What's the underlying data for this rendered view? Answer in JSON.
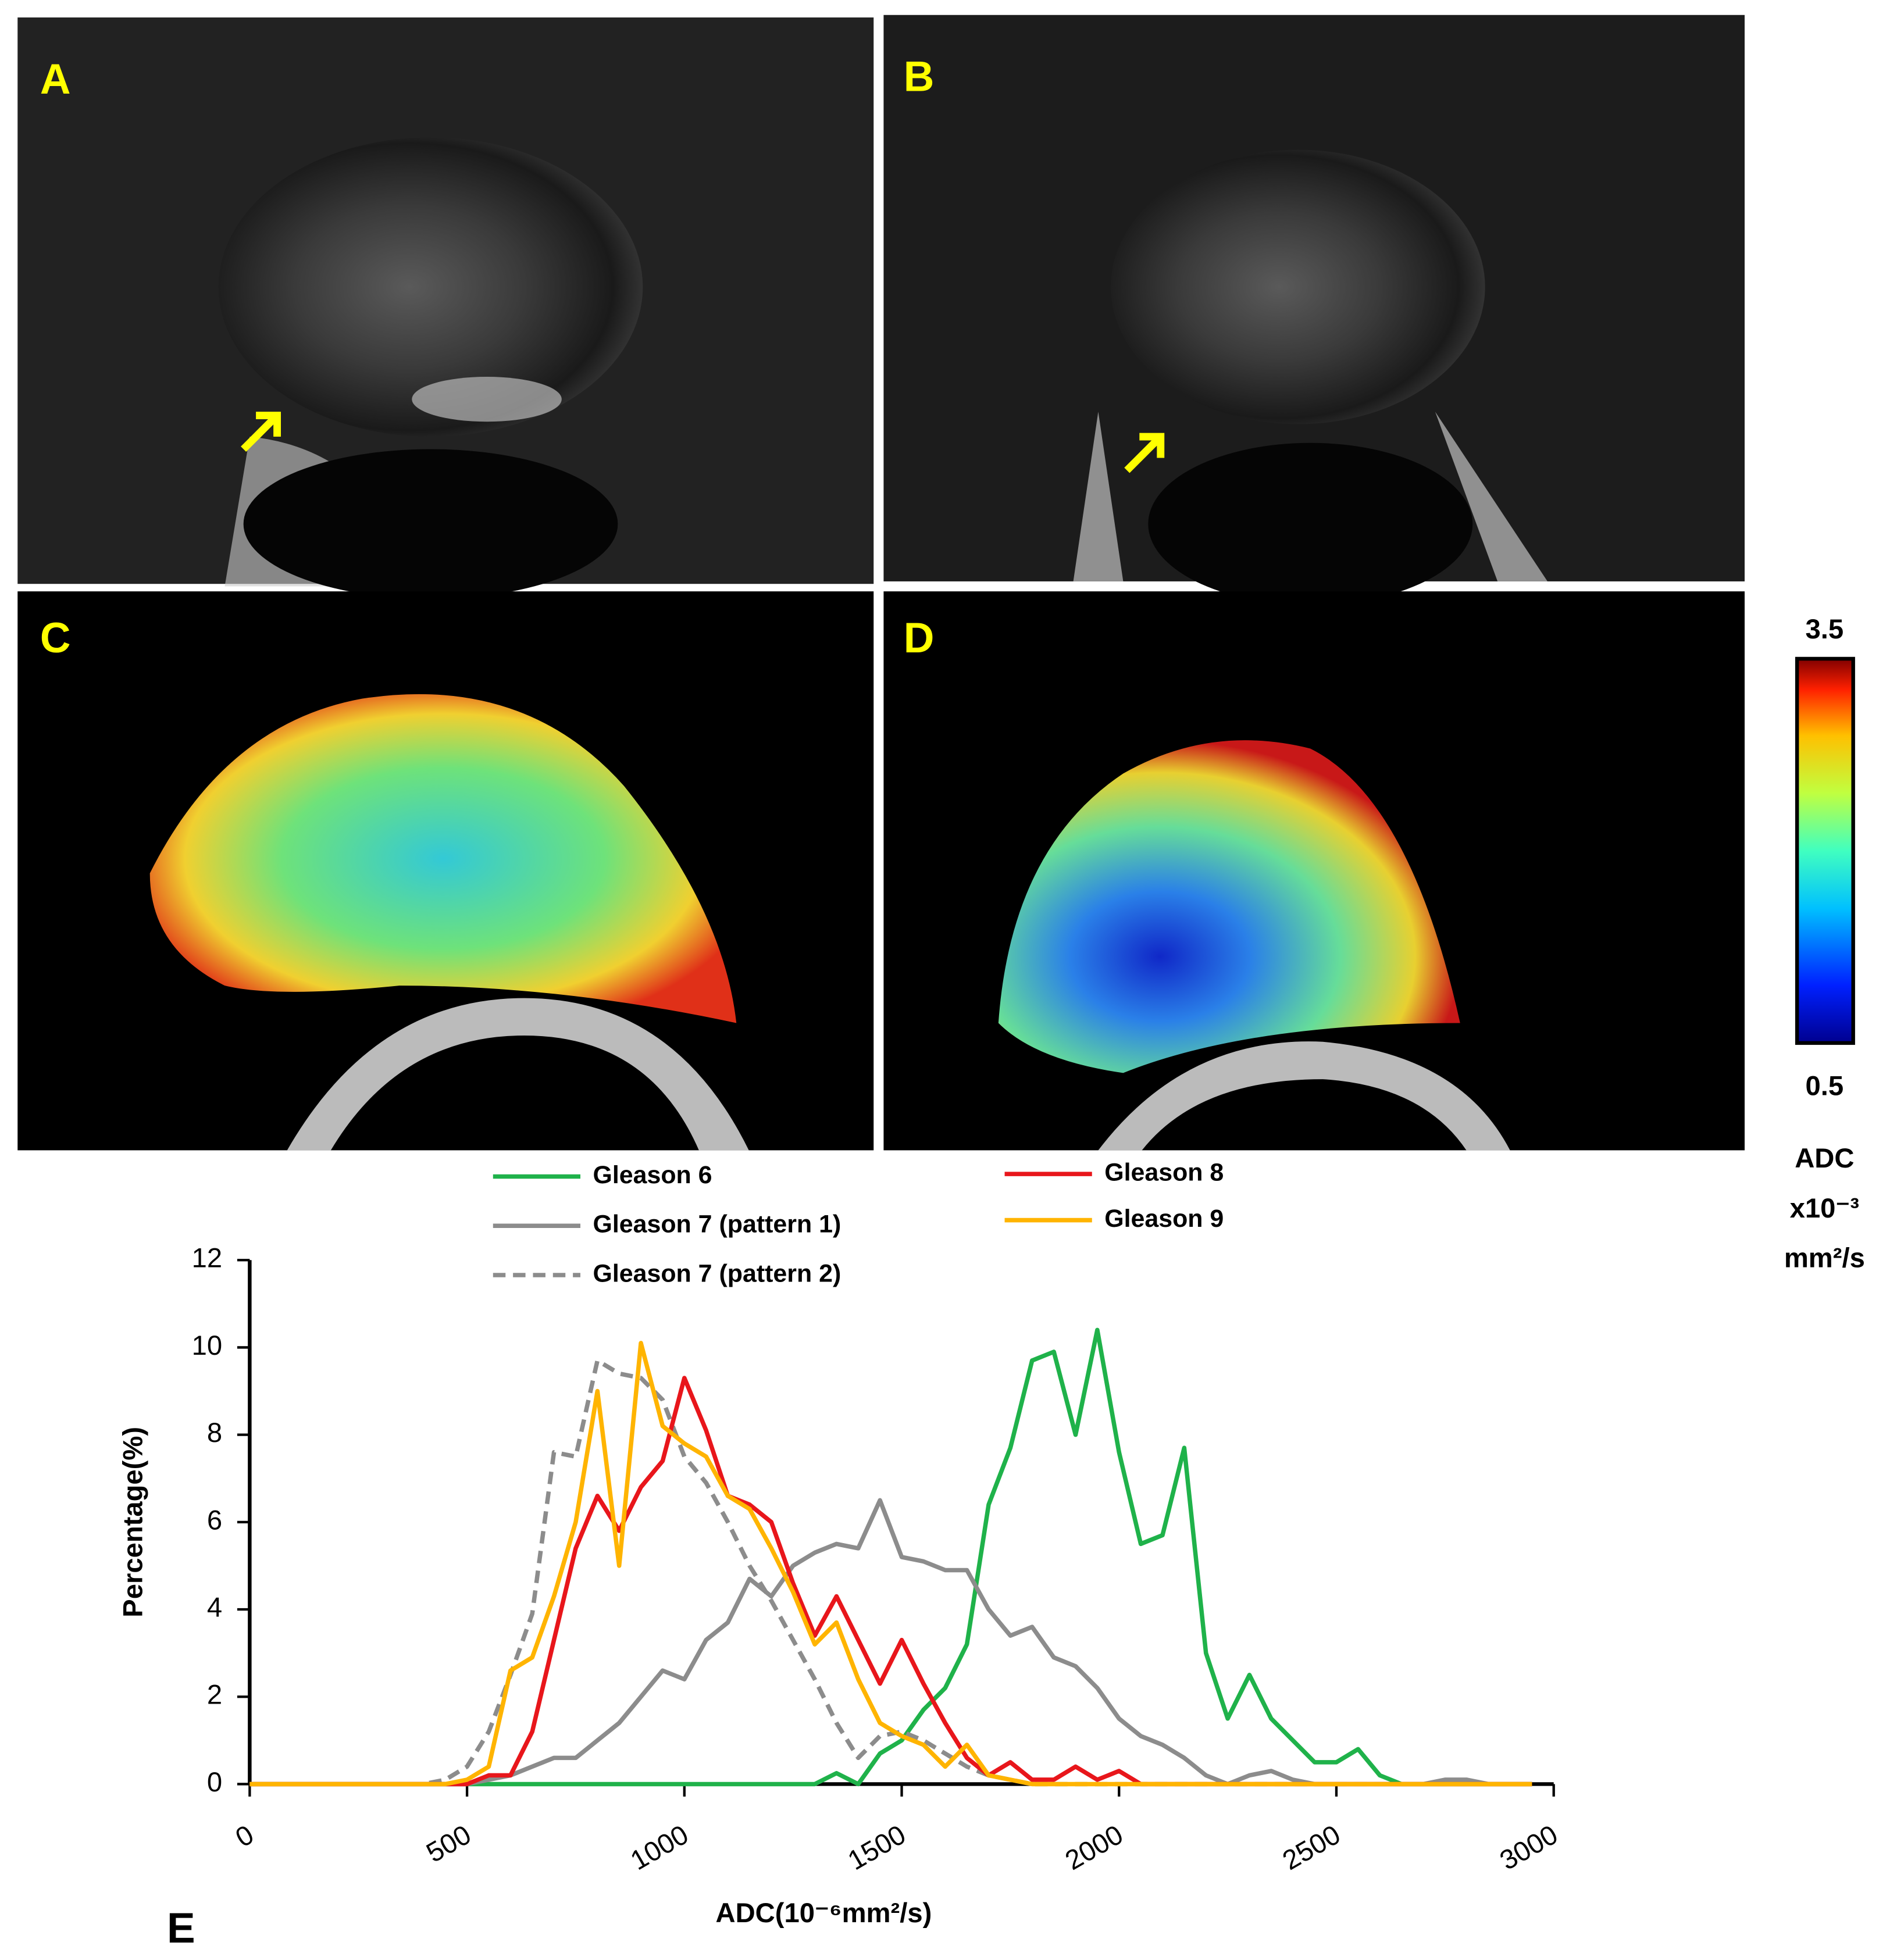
{
  "panels": [
    "A",
    "B",
    "C",
    "D",
    "E"
  ],
  "colorbar": {
    "max": "3.5",
    "min": "0.5",
    "label": [
      "ADC",
      "x10⁻³",
      "mm²/s"
    ]
  },
  "chart_data": {
    "type": "line",
    "xlabel": "ADC(10⁻⁶mm²/s)",
    "ylabel": "Percentage(%)",
    "x": [
      0,
      50,
      100,
      150,
      200,
      250,
      300,
      350,
      400,
      450,
      500,
      550,
      600,
      650,
      700,
      750,
      800,
      850,
      900,
      950,
      1000,
      1050,
      1100,
      1150,
      1200,
      1250,
      1300,
      1350,
      1400,
      1450,
      1500,
      1550,
      1600,
      1650,
      1700,
      1750,
      1800,
      1850,
      1900,
      1950,
      2000,
      2050,
      2100,
      2150,
      2200,
      2250,
      2300,
      2350,
      2400,
      2450,
      2500,
      2550,
      2600,
      2650,
      2700,
      2750,
      2800,
      2850,
      2900,
      2950
    ],
    "xlim": [
      0,
      3000
    ],
    "xticks": [
      0,
      500,
      1000,
      1500,
      2000,
      2500,
      3000
    ],
    "ylim": [
      0,
      12
    ],
    "yticks": [
      0,
      2,
      4,
      6,
      8,
      10,
      12
    ],
    "grid": false,
    "series": [
      {
        "name": "Gleason 6",
        "color": "#1fb24a",
        "dashed": false,
        "values": [
          0,
          0,
          0,
          0,
          0,
          0,
          0,
          0,
          0,
          0,
          0,
          0,
          0,
          0,
          0,
          0,
          0,
          0,
          0,
          0,
          0,
          0,
          0,
          0,
          0,
          0,
          0,
          0.25,
          0,
          0.7,
          1.0,
          1.7,
          2.2,
          3.2,
          6.4,
          7.7,
          9.7,
          9.9,
          8.0,
          10.4,
          7.6,
          5.5,
          5.7,
          7.7,
          3.0,
          1.5,
          2.5,
          1.5,
          1.0,
          0.5,
          0.5,
          0.8,
          0.2,
          0,
          0,
          0,
          0,
          0,
          0,
          0
        ]
      },
      {
        "name": "Gleason 7 (pattern 1)",
        "color": "#8c8c8c",
        "dashed": false,
        "values": [
          0,
          0,
          0,
          0,
          0,
          0,
          0,
          0,
          0,
          0,
          0,
          0.1,
          0.2,
          0.4,
          0.6,
          0.6,
          1.0,
          1.4,
          2.0,
          2.6,
          2.4,
          3.3,
          3.7,
          4.7,
          4.3,
          5.0,
          5.3,
          5.5,
          5.4,
          6.5,
          5.2,
          5.1,
          4.9,
          4.9,
          4.0,
          3.4,
          3.6,
          2.9,
          2.7,
          2.2,
          1.5,
          1.1,
          0.9,
          0.6,
          0.2,
          0,
          0.2,
          0.3,
          0.1,
          0,
          0,
          0,
          0,
          0,
          0,
          0.1,
          0.1,
          0,
          0,
          0
        ]
      },
      {
        "name": "Gleason 7 (pattern 2)",
        "color": "#8c8c8c",
        "dashed": true,
        "values": [
          0,
          0,
          0,
          0,
          0,
          0,
          0,
          0,
          0,
          0.1,
          0.4,
          1.2,
          2.5,
          3.9,
          7.6,
          7.5,
          9.7,
          9.4,
          9.3,
          8.8,
          7.5,
          6.9,
          6.0,
          5.0,
          4.2,
          3.3,
          2.4,
          1.4,
          0.6,
          1.1,
          1.2,
          1.0,
          0.7,
          0.4,
          0.2,
          0.1,
          0,
          0,
          0,
          0,
          0,
          0,
          0,
          0,
          0,
          0,
          0,
          0,
          0,
          0,
          0,
          0,
          0,
          0,
          0,
          0,
          0,
          0,
          0,
          0
        ]
      },
      {
        "name": "Gleason 8",
        "color": "#e8161b",
        "dashed": false,
        "values": [
          0,
          0,
          0,
          0,
          0,
          0,
          0,
          0,
          0,
          0,
          0,
          0.2,
          0.2,
          1.2,
          3.3,
          5.4,
          6.6,
          5.8,
          6.8,
          7.4,
          9.3,
          8.1,
          6.6,
          6.4,
          6.0,
          4.6,
          3.4,
          4.3,
          3.3,
          2.3,
          3.3,
          2.3,
          1.4,
          0.6,
          0.2,
          0.5,
          0.1,
          0.1,
          0.4,
          0.1,
          0.3,
          0,
          0,
          0,
          0,
          0,
          0,
          0,
          0,
          0,
          0,
          0,
          0,
          0,
          0,
          0,
          0,
          0,
          0,
          0
        ]
      },
      {
        "name": "Gleason 9",
        "color": "#ffb400",
        "dashed": false,
        "values": [
          0,
          0,
          0,
          0,
          0,
          0,
          0,
          0,
          0,
          0,
          0.1,
          0.4,
          2.6,
          2.9,
          4.3,
          6.0,
          9.0,
          5.0,
          10.1,
          8.2,
          7.8,
          7.5,
          6.6,
          6.3,
          5.4,
          4.4,
          3.2,
          3.7,
          2.4,
          1.4,
          1.1,
          0.9,
          0.4,
          0.9,
          0.2,
          0.1,
          0,
          0,
          0,
          0,
          0,
          0,
          0,
          0,
          0,
          0,
          0,
          0,
          0,
          0,
          0,
          0,
          0,
          0,
          0,
          0,
          0,
          0,
          0,
          0
        ]
      }
    ]
  }
}
